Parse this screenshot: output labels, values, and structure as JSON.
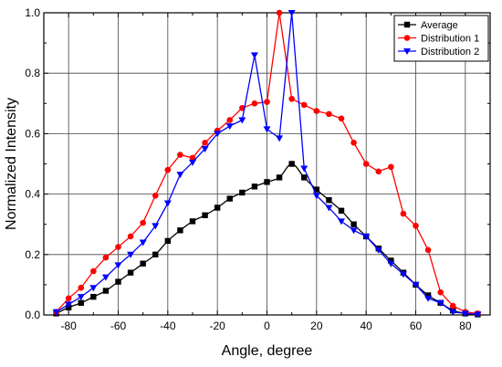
{
  "chart_data": {
    "type": "line",
    "xlabel": "Angle, degree",
    "ylabel": "Normalized Intensity",
    "xlim": [
      -90,
      90
    ],
    "ylim": [
      0.0,
      1.0
    ],
    "xticks": [
      -80,
      -60,
      -40,
      -20,
      0,
      20,
      40,
      60,
      80
    ],
    "yticks": [
      0.0,
      0.2,
      0.4,
      0.6,
      0.8,
      1.0
    ],
    "xtick_labels": [
      "-80",
      "-60",
      "-40",
      "-20",
      "0",
      "20",
      "40",
      "60",
      "80"
    ],
    "ytick_labels": [
      "0.0",
      "0.2",
      "0.4",
      "0.6",
      "0.8",
      "1.0"
    ],
    "grid": true,
    "legend_position": "top-right",
    "series": [
      {
        "name": "Average",
        "color": "#000000",
        "marker": "square",
        "smooth": true,
        "x": [
          -85,
          -80,
          -75,
          -70,
          -65,
          -60,
          -55,
          -50,
          -45,
          -40,
          -35,
          -30,
          -25,
          -20,
          -15,
          -10,
          -5,
          0,
          5,
          10,
          15,
          20,
          25,
          30,
          35,
          40,
          45,
          50,
          55,
          60,
          65,
          70,
          75,
          80,
          85
        ],
        "y": [
          0.005,
          0.025,
          0.04,
          0.06,
          0.08,
          0.11,
          0.14,
          0.17,
          0.2,
          0.245,
          0.28,
          0.31,
          0.33,
          0.355,
          0.385,
          0.405,
          0.425,
          0.44,
          0.455,
          0.5,
          0.455,
          0.415,
          0.38,
          0.345,
          0.3,
          0.26,
          0.22,
          0.18,
          0.14,
          0.1,
          0.065,
          0.04,
          0.015,
          0.005,
          0.002
        ]
      },
      {
        "name": "Distribution 1",
        "color": "#ff0000",
        "marker": "circle",
        "smooth": false,
        "x": [
          -85,
          -80,
          -75,
          -70,
          -65,
          -60,
          -55,
          -50,
          -45,
          -40,
          -35,
          -30,
          -25,
          -20,
          -15,
          -10,
          -5,
          0,
          5,
          10,
          15,
          20,
          25,
          30,
          35,
          40,
          45,
          50,
          55,
          60,
          65,
          70,
          75,
          80,
          85
        ],
        "y": [
          0.01,
          0.055,
          0.09,
          0.145,
          0.19,
          0.225,
          0.26,
          0.305,
          0.395,
          0.48,
          0.53,
          0.52,
          0.57,
          0.61,
          0.645,
          0.685,
          0.7,
          0.705,
          1.0,
          0.715,
          0.695,
          0.675,
          0.665,
          0.65,
          0.57,
          0.5,
          0.475,
          0.49,
          0.335,
          0.295,
          0.215,
          0.075,
          0.03,
          0.01,
          0.005
        ]
      },
      {
        "name": "Distribution 2",
        "color": "#0000ff",
        "marker": "triangle-down",
        "smooth": false,
        "x": [
          -85,
          -80,
          -75,
          -70,
          -65,
          -60,
          -55,
          -50,
          -45,
          -40,
          -35,
          -30,
          -25,
          -20,
          -15,
          -10,
          -5,
          0,
          5,
          10,
          15,
          20,
          25,
          30,
          35,
          40,
          45,
          50,
          55,
          60,
          65,
          70,
          75,
          80,
          85
        ],
        "y": [
          0.01,
          0.035,
          0.06,
          0.09,
          0.125,
          0.165,
          0.2,
          0.24,
          0.295,
          0.37,
          0.465,
          0.505,
          0.55,
          0.6,
          0.625,
          0.645,
          0.86,
          0.615,
          0.585,
          1.0,
          0.485,
          0.395,
          0.355,
          0.31,
          0.28,
          0.26,
          0.215,
          0.17,
          0.135,
          0.1,
          0.055,
          0.04,
          0.01,
          0.005,
          0.002
        ]
      }
    ]
  }
}
